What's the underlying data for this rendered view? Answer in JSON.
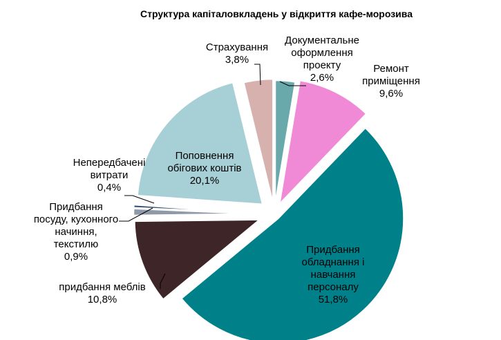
{
  "chart_data": {
    "type": "pie",
    "title": "Структура капіталовкладень у відкриття кафе-морозива",
    "start_angle_deg": 0,
    "direction": "clockwise",
    "exploded": true,
    "legend": "none",
    "slices": [
      {
        "lines": [
          "Документальне",
          "оформлення",
          "проекту"
        ],
        "value_label": "2,6%",
        "value": 2.6,
        "color": "#6aa9ab"
      },
      {
        "lines": [
          "Ремонт",
          "приміщення"
        ],
        "value_label": "9,6%",
        "value": 9.6,
        "color": "#f18ad6"
      },
      {
        "lines": [
          "Придбання",
          "обладнання і",
          "навчання",
          "персоналу"
        ],
        "value_label": "51,8%",
        "value": 51.8,
        "color": "#00818a"
      },
      {
        "lines": [
          "придбання меблів"
        ],
        "value_label": "10,8%",
        "value": 10.8,
        "color": "#3e2628"
      },
      {
        "lines": [
          "Придбання",
          "посуду, кухонного",
          "начиння,",
          "текстилю"
        ],
        "value_label": "0,9%",
        "value": 0.9,
        "color": "#8e9aa8"
      },
      {
        "lines": [
          "Непередбачені",
          "витрати"
        ],
        "value_label": "0,4%",
        "value": 0.4,
        "color": "#2f4a6e"
      },
      {
        "lines": [
          "Поповнення",
          "обігових коштів"
        ],
        "value_label": "20,1%",
        "value": 20.1,
        "color": "#a6cfd6"
      },
      {
        "lines": [
          "Страхування"
        ],
        "value_label": "3,8%",
        "value": 3.8,
        "color": "#d7b1ae"
      }
    ]
  }
}
